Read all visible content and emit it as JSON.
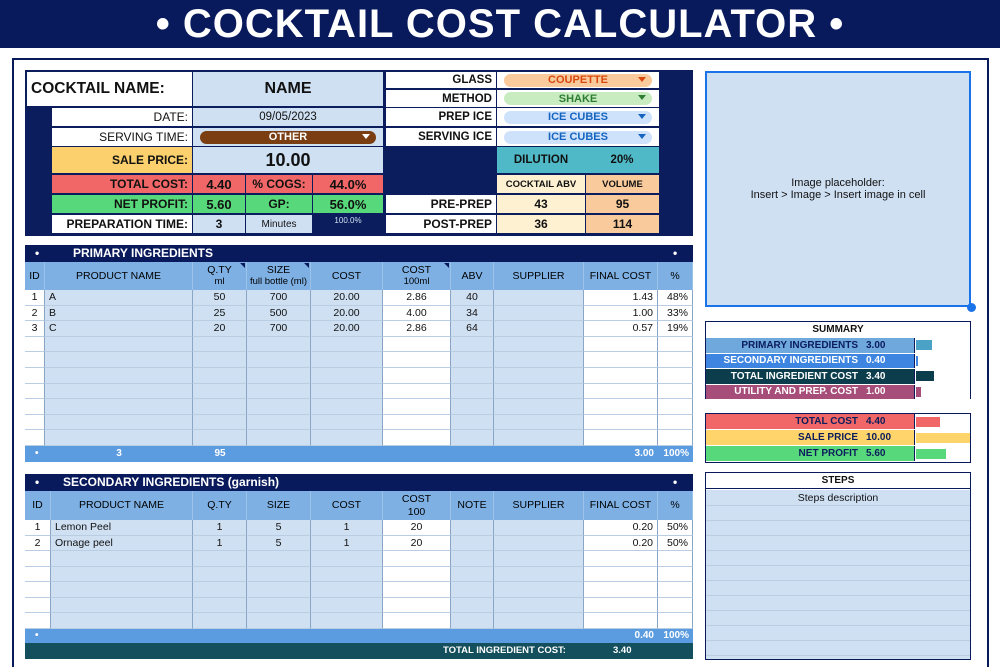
{
  "title": "• COCKTAIL COST CALCULATOR •",
  "header": {
    "cocktail_name_label": "COCKTAIL NAME:",
    "cocktail_name_value": "NAME",
    "date_label": "DATE:",
    "date_value": "09/05/2023",
    "serving_time_label": "SERVING TIME:",
    "serving_time_value": "OTHER",
    "sale_price_label": "SALE PRICE:",
    "sale_price_value": "10.00",
    "total_cost_label": "TOTAL COST:",
    "total_cost_value": "4.40",
    "cogs_label": "% COGS:",
    "cogs_value": "44.0%",
    "net_profit_label": "NET PROFIT:",
    "net_profit_value": "5.60",
    "gp_label": "GP:",
    "gp_value": "56.0%",
    "prep_time_label": "PREPARATION TIME:",
    "prep_time_value": "3",
    "prep_time_unit": "Minutes",
    "prep_pct": "100.0%",
    "glass_label": "GLASS",
    "glass_value": "COUPETTE",
    "method_label": "METHOD",
    "method_value": "SHAKE",
    "prep_ice_label": "PREP ICE",
    "prep_ice_value": "ICE CUBES",
    "serving_ice_label": "SERVING ICE",
    "serving_ice_value": "ICE CUBES",
    "dilution_label": "DILUTION",
    "dilution_value": "20%",
    "abv_header": "COCKTAIL ABV",
    "volume_header": "VOLUME",
    "pre_prep_label": "PRE-PREP",
    "pre_prep_abv": "43",
    "pre_prep_volume": "95",
    "post_prep_label": "POST-PREP",
    "post_prep_abv": "36",
    "post_prep_volume": "114"
  },
  "primary": {
    "section_title": "PRIMARY INGREDIENTS",
    "bullet": "•",
    "headers": {
      "id": "ID",
      "name": "PRODUCT NAME",
      "qty_line1": "Q.TY",
      "qty_line2": "ml",
      "size_line1": "SIZE",
      "size_line2": "full bottle (ml)",
      "cost": "COST",
      "cost100_line1": "COST",
      "cost100_line2": "100ml",
      "abv": "ABV",
      "supplier": "SUPPLIER",
      "final_cost": "FINAL COST",
      "pct": "%"
    },
    "rows": [
      {
        "id": "1",
        "name": "A",
        "qty": "50",
        "size": "700",
        "cost": "20.00",
        "cost100": "2.86",
        "abv": "40",
        "supplier": "",
        "final": "1.43",
        "pct": "48%"
      },
      {
        "id": "2",
        "name": "B",
        "qty": "25",
        "size": "500",
        "cost": "20.00",
        "cost100": "4.00",
        "abv": "34",
        "supplier": "",
        "final": "1.00",
        "pct": "33%"
      },
      {
        "id": "3",
        "name": "C",
        "qty": "20",
        "size": "700",
        "cost": "20.00",
        "cost100": "2.86",
        "abv": "64",
        "supplier": "",
        "final": "0.57",
        "pct": "19%"
      }
    ],
    "totals": {
      "count": "3",
      "qty": "95",
      "final": "3.00",
      "pct": "100%"
    }
  },
  "secondary": {
    "section_title": "SECONDARY INGREDIENTS (garnish)",
    "bullet": "•",
    "headers": {
      "id": "ID",
      "name": "PRODUCT NAME",
      "qty": "Q.TY",
      "size": "SIZE",
      "cost": "COST",
      "cost100_line1": "COST",
      "cost100_line2": "100",
      "note": "NOTE",
      "supplier": "SUPPLIER",
      "final_cost": "FINAL COST",
      "pct": "%"
    },
    "rows": [
      {
        "id": "1",
        "name": "Lemon Peel",
        "qty": "1",
        "size": "5",
        "cost": "1",
        "cost100": "20",
        "note": "",
        "supplier": "",
        "final": "0.20",
        "pct": "50%"
      },
      {
        "id": "2",
        "name": "Ornage peel",
        "qty": "1",
        "size": "5",
        "cost": "1",
        "cost100": "20",
        "note": "",
        "supplier": "",
        "final": "0.20",
        "pct": "50%"
      }
    ],
    "totals": {
      "final": "0.40",
      "pct": "100%"
    },
    "grand_total_label": "TOTAL INGREDIENT COST:",
    "grand_total_value": "3.40"
  },
  "image_placeholder": {
    "line1": "Image placeholder:",
    "line2": "Insert > Image > Insert image in cell"
  },
  "summary": {
    "title": "SUMMARY",
    "rows": [
      {
        "label": "PRIMARY INGREDIENTS",
        "value": "3.00",
        "bar_fraction": 0.3,
        "bg": "#6fa8dc",
        "bar": "#4aa3c7"
      },
      {
        "label": "SECONDARY INGREDIENTS",
        "value": "0.40",
        "bar_fraction": 0.04,
        "bg": "#3d85e0",
        "bar": "#3d85e0"
      },
      {
        "label": "TOTAL INGREDIENT COST",
        "value": "3.40",
        "bar_fraction": 0.34,
        "bg": "#0b3d4c",
        "bar": "#0b3d4c"
      },
      {
        "label": "UTILITY AND PREP. COST",
        "value": "1.00",
        "bar_fraction": 0.1,
        "bg": "#a64d79",
        "bar": "#a64d79"
      }
    ],
    "price_rows": [
      {
        "label": "TOTAL COST",
        "value": "4.40",
        "bar_fraction": 0.44,
        "bg": "#f16666",
        "bar": "#f16666"
      },
      {
        "label": "SALE PRICE",
        "value": "10.00",
        "bar_fraction": 1.0,
        "bg": "#ffd46b",
        "bar": "#ffd46b"
      },
      {
        "label": "NET PROFIT",
        "value": "5.60",
        "bar_fraction": 0.56,
        "bg": "#57d97b",
        "bar": "#57d97b"
      }
    ]
  },
  "steps": {
    "title": "STEPS",
    "description": "Steps description"
  },
  "colors": {
    "navy": "#091a5c",
    "light_blue": "#cfe0f3",
    "header_blue": "#7eb0e4",
    "total_blue": "#5b9bdf"
  }
}
